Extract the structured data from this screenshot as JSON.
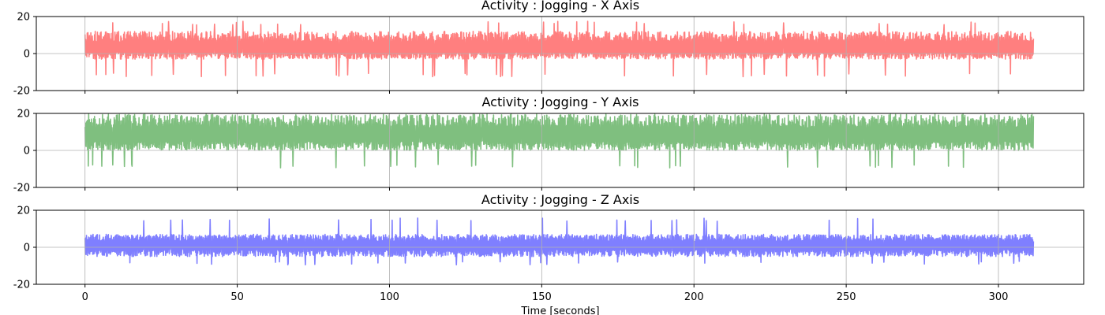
{
  "chart_data": [
    {
      "type": "line",
      "title": "Activity : Jogging - X Axis",
      "xlabel": "",
      "ylabel": "",
      "xlim": [
        -16,
        328
      ],
      "ylim": [
        -20,
        20
      ],
      "xticks": [
        0,
        50,
        100,
        150,
        200,
        250,
        300
      ],
      "yticks": [
        -20,
        0,
        20
      ],
      "grid": true,
      "color": "#ff0000",
      "alpha": 0.5,
      "signal": {
        "duration_seconds": 311.5,
        "mean": 3,
        "typical_range": [
          -3,
          12
        ],
        "observed_min": -12.5,
        "observed_max": 17.5
      }
    },
    {
      "type": "line",
      "title": "Activity : Jogging - Y Axis",
      "xlabel": "",
      "ylabel": "",
      "xlim": [
        -16,
        328
      ],
      "ylim": [
        -20,
        20
      ],
      "xticks": [
        0,
        50,
        100,
        150,
        200,
        250,
        300
      ],
      "yticks": [
        -20,
        0,
        20
      ],
      "grid": true,
      "color": "#008000",
      "alpha": 0.5,
      "signal": {
        "duration_seconds": 311.5,
        "mean": 8,
        "typical_range": [
          0,
          19.5
        ],
        "observed_min": -9.5,
        "observed_max": 19.6
      }
    },
    {
      "type": "line",
      "title": "Activity : Jogging - Z Axis",
      "xlabel": "Time [seconds]",
      "ylabel": "",
      "xlim": [
        -16,
        328
      ],
      "ylim": [
        -20,
        20
      ],
      "xticks": [
        0,
        50,
        100,
        150,
        200,
        250,
        300
      ],
      "yticks": [
        -20,
        0,
        20
      ],
      "grid": true,
      "color": "#0000ff",
      "alpha": 0.5,
      "signal": {
        "duration_seconds": 311.5,
        "mean": 1,
        "typical_range": [
          -5,
          7
        ],
        "observed_min": -9.5,
        "observed_max": 16
      }
    }
  ]
}
